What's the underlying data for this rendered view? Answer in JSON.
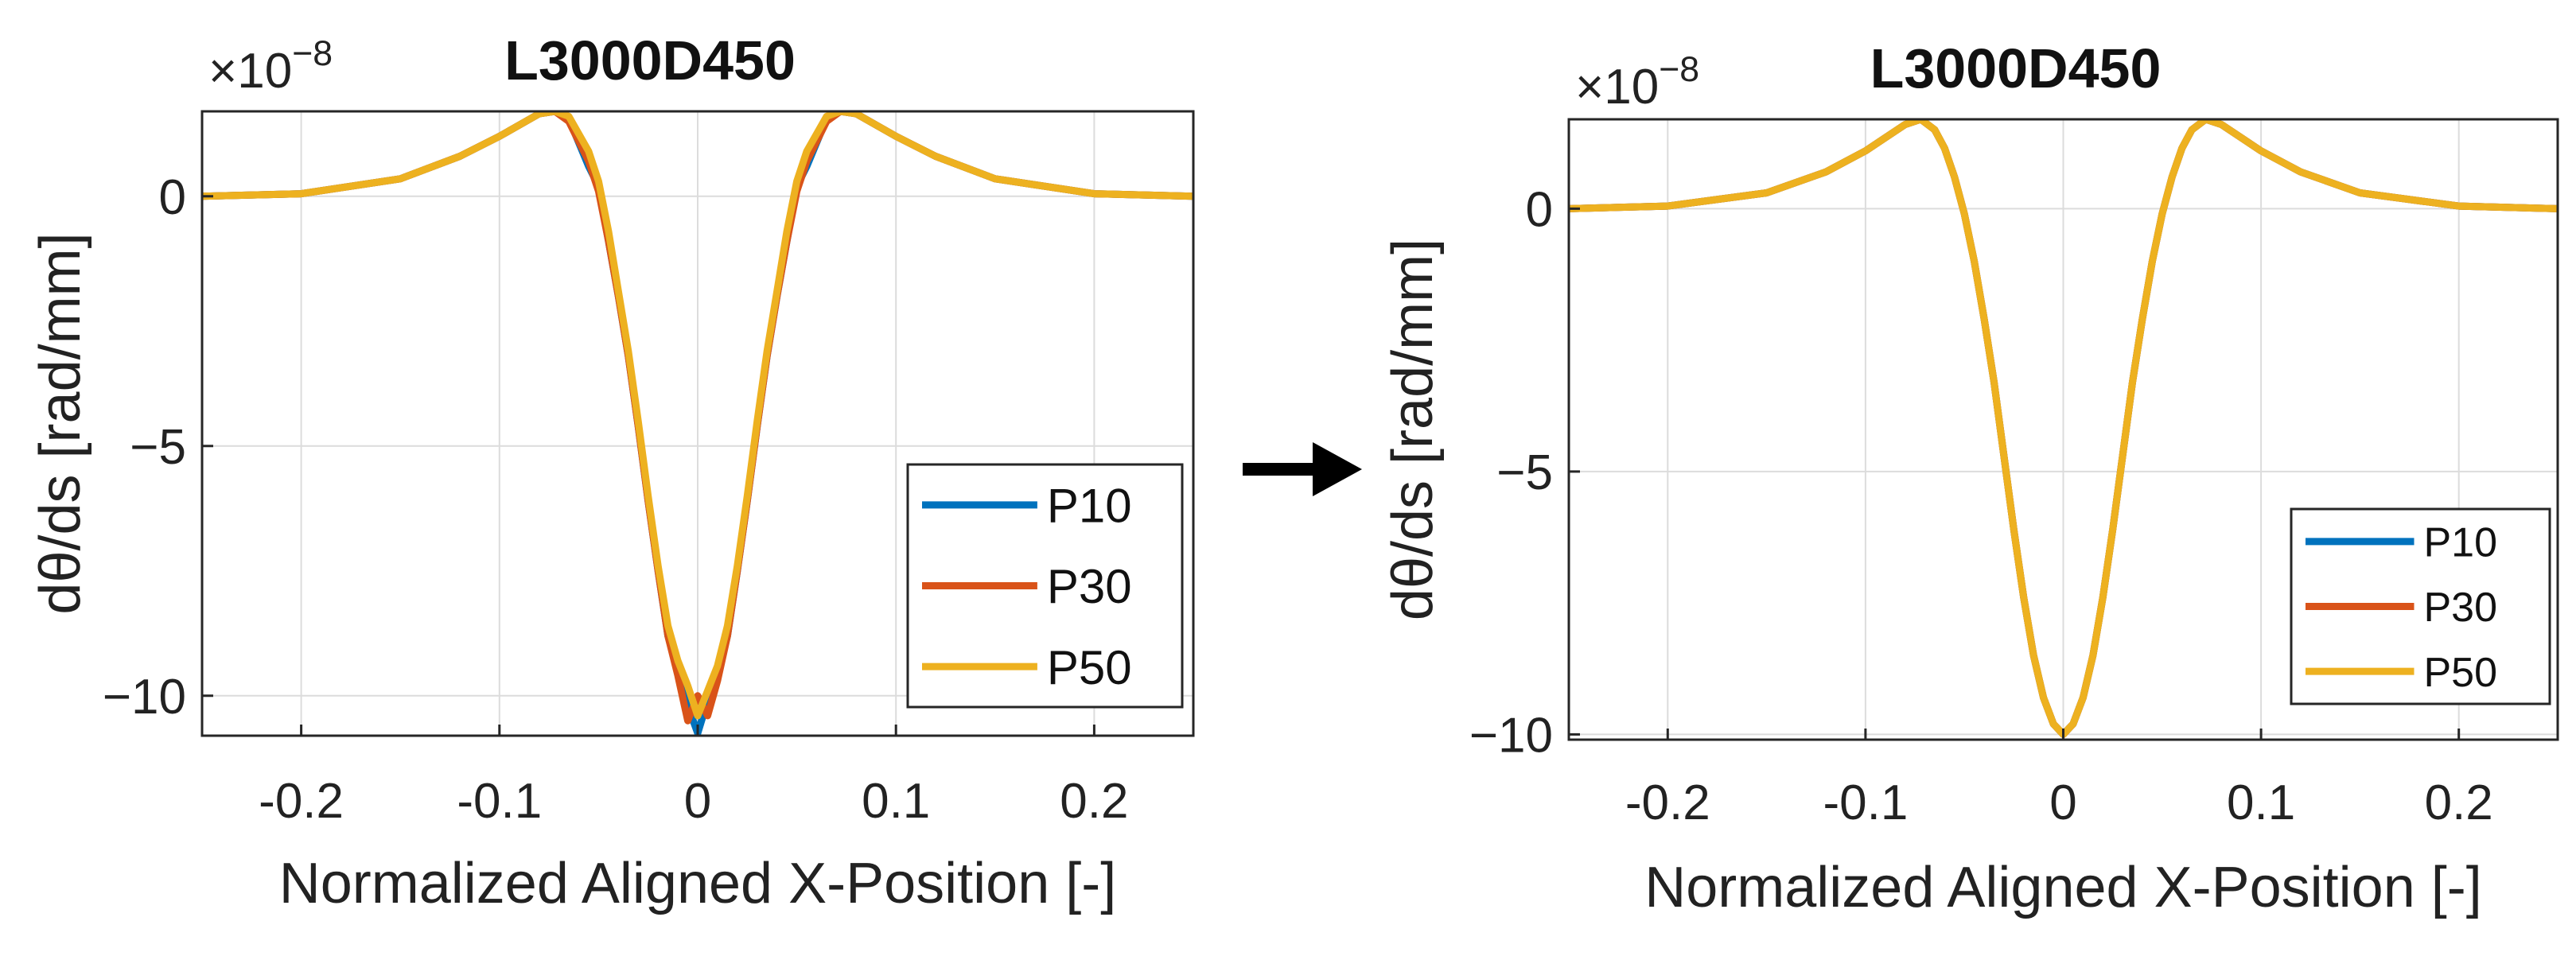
{
  "colors": {
    "P10": "#0072BD",
    "P30": "#D95319",
    "P50": "#EDB120"
  },
  "chart_data": [
    {
      "type": "line",
      "title": "L3000D450",
      "exponent_label": "×10",
      "exponent_power": "−8",
      "xlabel": "Normalized Aligned X-Position [-]",
      "ylabel": "dθ/ds [rad/mm]",
      "xlim": [
        -0.25,
        0.25
      ],
      "ylim": [
        -10.8,
        1.7
      ],
      "xticks": [
        -0.2,
        -0.1,
        0,
        0.1,
        0.2
      ],
      "xtick_labels": [
        "-0.2",
        "-0.1",
        "0",
        "0.1",
        "0.2"
      ],
      "yticks": [
        0,
        -5,
        -10
      ],
      "ytick_labels": [
        "0",
        "−5",
        "−10"
      ],
      "grid": true,
      "legend_position": "bottom-right",
      "series": [
        {
          "name": "P10",
          "x": [
            -0.25,
            -0.2,
            -0.15,
            -0.12,
            -0.1,
            -0.08,
            -0.072,
            -0.065,
            -0.055,
            -0.05,
            -0.045,
            -0.04,
            -0.035,
            -0.03,
            -0.025,
            -0.02,
            -0.015,
            -0.01,
            -0.005,
            0,
            0.005,
            0.01,
            0.015,
            0.02,
            0.025,
            0.03,
            0.035,
            0.04,
            0.045,
            0.05,
            0.055,
            0.065,
            0.072,
            0.08,
            0.1,
            0.12,
            0.15,
            0.2,
            0.25
          ],
          "y": [
            0,
            0.05,
            0.35,
            0.8,
            1.2,
            1.65,
            1.7,
            1.55,
            0.6,
            0.2,
            -0.9,
            -2.0,
            -3.2,
            -4.6,
            -6.1,
            -7.5,
            -8.8,
            -9.5,
            -10.2,
            -10.75,
            -10.1,
            -9.6,
            -8.8,
            -7.5,
            -6.1,
            -4.6,
            -3.2,
            -2.0,
            -0.9,
            0.2,
            0.6,
            1.55,
            1.7,
            1.65,
            1.2,
            0.8,
            0.35,
            0.05,
            0
          ]
        },
        {
          "name": "P30",
          "x": [
            -0.25,
            -0.2,
            -0.15,
            -0.12,
            -0.1,
            -0.08,
            -0.072,
            -0.065,
            -0.055,
            -0.05,
            -0.045,
            -0.04,
            -0.035,
            -0.03,
            -0.025,
            -0.02,
            -0.015,
            -0.01,
            -0.005,
            0,
            0.005,
            0.01,
            0.015,
            0.02,
            0.025,
            0.03,
            0.035,
            0.04,
            0.045,
            0.05,
            0.055,
            0.065,
            0.072,
            0.08,
            0.1,
            0.12,
            0.15,
            0.2,
            0.25
          ],
          "y": [
            0,
            0.05,
            0.35,
            0.8,
            1.2,
            1.65,
            1.7,
            1.5,
            0.7,
            0.1,
            -0.9,
            -2.0,
            -3.2,
            -4.6,
            -6.1,
            -7.5,
            -8.8,
            -9.6,
            -10.5,
            -10.0,
            -10.4,
            -9.7,
            -8.8,
            -7.5,
            -6.1,
            -4.6,
            -3.2,
            -2.0,
            -0.9,
            0.1,
            0.7,
            1.5,
            1.7,
            1.65,
            1.2,
            0.8,
            0.35,
            0.05,
            0
          ]
        },
        {
          "name": "P50",
          "x": [
            -0.25,
            -0.2,
            -0.15,
            -0.12,
            -0.1,
            -0.08,
            -0.072,
            -0.065,
            -0.055,
            -0.05,
            -0.045,
            -0.04,
            -0.035,
            -0.03,
            -0.025,
            -0.02,
            -0.015,
            -0.01,
            -0.005,
            0,
            0.005,
            0.01,
            0.015,
            0.02,
            0.025,
            0.03,
            0.035,
            0.04,
            0.045,
            0.05,
            0.055,
            0.065,
            0.072,
            0.08,
            0.1,
            0.12,
            0.15,
            0.2,
            0.25
          ],
          "y": [
            0,
            0.05,
            0.35,
            0.8,
            1.2,
            1.65,
            1.7,
            1.6,
            0.9,
            0.3,
            -0.7,
            -1.9,
            -3.1,
            -4.5,
            -6.0,
            -7.4,
            -8.6,
            -9.3,
            -9.8,
            -10.4,
            -9.9,
            -9.4,
            -8.6,
            -7.4,
            -6.0,
            -4.5,
            -3.1,
            -1.9,
            -0.7,
            0.3,
            0.9,
            1.6,
            1.7,
            1.65,
            1.2,
            0.8,
            0.35,
            0.05,
            0
          ]
        }
      ]
    },
    {
      "type": "line",
      "title": "L3000D450",
      "exponent_label": "×10",
      "exponent_power": "−8",
      "xlabel": "Normalized Aligned X-Position [-]",
      "ylabel": "dθ/ds [rad/mm]",
      "xlim": [
        -0.25,
        0.25
      ],
      "ylim": [
        -10.1,
        1.7
      ],
      "xticks": [
        -0.2,
        -0.1,
        0,
        0.1,
        0.2
      ],
      "xtick_labels": [
        "-0.2",
        "-0.1",
        "0",
        "0.1",
        "0.2"
      ],
      "yticks": [
        0,
        -5,
        -10
      ],
      "ytick_labels": [
        "0",
        "−5",
        "−10"
      ],
      "grid": true,
      "legend_position": "bottom-right",
      "series": [
        {
          "name": "P10",
          "x": [
            -0.25,
            -0.2,
            -0.15,
            -0.12,
            -0.1,
            -0.09,
            -0.08,
            -0.072,
            -0.065,
            -0.06,
            -0.055,
            -0.05,
            -0.045,
            -0.04,
            -0.035,
            -0.03,
            -0.025,
            -0.02,
            -0.015,
            -0.01,
            -0.005,
            0,
            0.005,
            0.01,
            0.015,
            0.02,
            0.025,
            0.03,
            0.035,
            0.04,
            0.045,
            0.05,
            0.055,
            0.06,
            0.065,
            0.072,
            0.08,
            0.09,
            0.1,
            0.12,
            0.15,
            0.2,
            0.25
          ],
          "y": [
            0,
            0.05,
            0.3,
            0.7,
            1.1,
            1.35,
            1.6,
            1.7,
            1.5,
            1.15,
            0.6,
            -0.1,
            -1.0,
            -2.1,
            -3.3,
            -4.7,
            -6.1,
            -7.4,
            -8.5,
            -9.3,
            -9.8,
            -10.0,
            -9.8,
            -9.3,
            -8.5,
            -7.4,
            -6.1,
            -4.7,
            -3.3,
            -2.1,
            -1.0,
            -0.1,
            0.6,
            1.15,
            1.5,
            1.7,
            1.6,
            1.35,
            1.1,
            0.7,
            0.3,
            0.05,
            0
          ]
        },
        {
          "name": "P30",
          "x": [
            -0.25,
            -0.2,
            -0.15,
            -0.12,
            -0.1,
            -0.09,
            -0.08,
            -0.072,
            -0.065,
            -0.06,
            -0.055,
            -0.05,
            -0.045,
            -0.04,
            -0.035,
            -0.03,
            -0.025,
            -0.02,
            -0.015,
            -0.01,
            -0.005,
            0,
            0.005,
            0.01,
            0.015,
            0.02,
            0.025,
            0.03,
            0.035,
            0.04,
            0.045,
            0.05,
            0.055,
            0.06,
            0.065,
            0.072,
            0.08,
            0.09,
            0.1,
            0.12,
            0.15,
            0.2,
            0.25
          ],
          "y": [
            0,
            0.05,
            0.3,
            0.7,
            1.1,
            1.35,
            1.6,
            1.7,
            1.5,
            1.15,
            0.6,
            -0.1,
            -1.0,
            -2.1,
            -3.3,
            -4.7,
            -6.1,
            -7.4,
            -8.5,
            -9.3,
            -9.8,
            -10.0,
            -9.8,
            -9.3,
            -8.5,
            -7.4,
            -6.1,
            -4.7,
            -3.3,
            -2.1,
            -1.0,
            -0.1,
            0.6,
            1.15,
            1.5,
            1.7,
            1.6,
            1.35,
            1.1,
            0.7,
            0.3,
            0.05,
            0
          ]
        },
        {
          "name": "P50",
          "x": [
            -0.25,
            -0.2,
            -0.15,
            -0.12,
            -0.1,
            -0.09,
            -0.08,
            -0.072,
            -0.065,
            -0.06,
            -0.055,
            -0.05,
            -0.045,
            -0.04,
            -0.035,
            -0.03,
            -0.025,
            -0.02,
            -0.015,
            -0.01,
            -0.005,
            0,
            0.005,
            0.01,
            0.015,
            0.02,
            0.025,
            0.03,
            0.035,
            0.04,
            0.045,
            0.05,
            0.055,
            0.06,
            0.065,
            0.072,
            0.08,
            0.09,
            0.1,
            0.12,
            0.15,
            0.2,
            0.25
          ],
          "y": [
            0,
            0.05,
            0.3,
            0.7,
            1.1,
            1.35,
            1.6,
            1.7,
            1.5,
            1.15,
            0.6,
            -0.1,
            -1.0,
            -2.1,
            -3.3,
            -4.7,
            -6.1,
            -7.4,
            -8.5,
            -9.3,
            -9.8,
            -10.0,
            -9.8,
            -9.3,
            -8.5,
            -7.4,
            -6.1,
            -4.7,
            -3.3,
            -2.1,
            -1.0,
            -0.1,
            0.6,
            1.15,
            1.5,
            1.7,
            1.6,
            1.35,
            1.1,
            0.7,
            0.3,
            0.05,
            0
          ]
        }
      ]
    }
  ]
}
